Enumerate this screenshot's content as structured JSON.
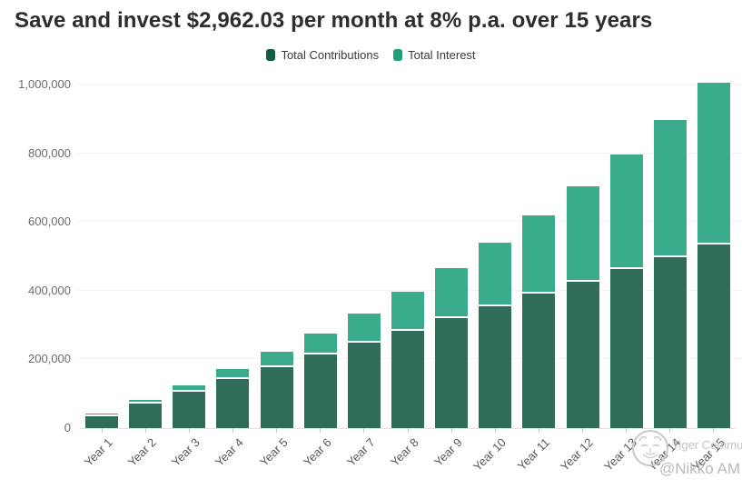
{
  "header": {
    "title": "Save and invest $2,962.03 per month at 8% p.a. over 15 years"
  },
  "watermark": {
    "brand": "Tiger Community",
    "handle": "@Nikko AM",
    "logo_icon": "tiger-sketch-icon",
    "color": "#c3c3c3"
  },
  "chart_data": {
    "type": "bar",
    "stacked": true,
    "title": "Save and invest $2,962.03 per month at 8% p.a. over 15 years",
    "categories": [
      "Year 1",
      "Year 2",
      "Year 3",
      "Year 4",
      "Year 5",
      "Year 6",
      "Year 7",
      "Year 8",
      "Year 9",
      "Year 10",
      "Year 11",
      "Year 12",
      "Year 13",
      "Year 14",
      "Year 15"
    ],
    "series": [
      {
        "name": "Total Contributions",
        "color": "#135a44",
        "values": [
          35544,
          71089,
          106633,
          142177,
          177722,
          213266,
          248811,
          284355,
          319899,
          355444,
          390988,
          426532,
          462077,
          497621,
          533165
        ]
      },
      {
        "name": "Total Interest",
        "color": "#1f9f7b",
        "values": [
          1286,
          5517,
          12931,
          23783,
          38346,
          56918,
          79816,
          107389,
          140010,
          178084,
          222048,
          272373,
          329567,
          394183,
          466839
        ]
      }
    ],
    "totals": [
      36830,
      76606,
      119564,
      165960,
      216068,
      270184,
      328627,
      391744,
      459909,
      533528,
      613036,
      698905,
      791644,
      891804,
      1000004
    ],
    "xlabel": "",
    "ylabel": "",
    "ylim": [
      0,
      1000000
    ],
    "yticks": [
      {
        "value": 0,
        "label": "0"
      },
      {
        "value": 200000,
        "label": "200,000"
      },
      {
        "value": 400000,
        "label": "400,000"
      },
      {
        "value": 600000,
        "label": "600,000"
      },
      {
        "value": 800000,
        "label": "800,000"
      },
      {
        "value": 1000000,
        "label": "1,000,000"
      }
    ],
    "legend_position": "top-center",
    "grid": "horizontal",
    "bar_opacity": 0.88
  }
}
